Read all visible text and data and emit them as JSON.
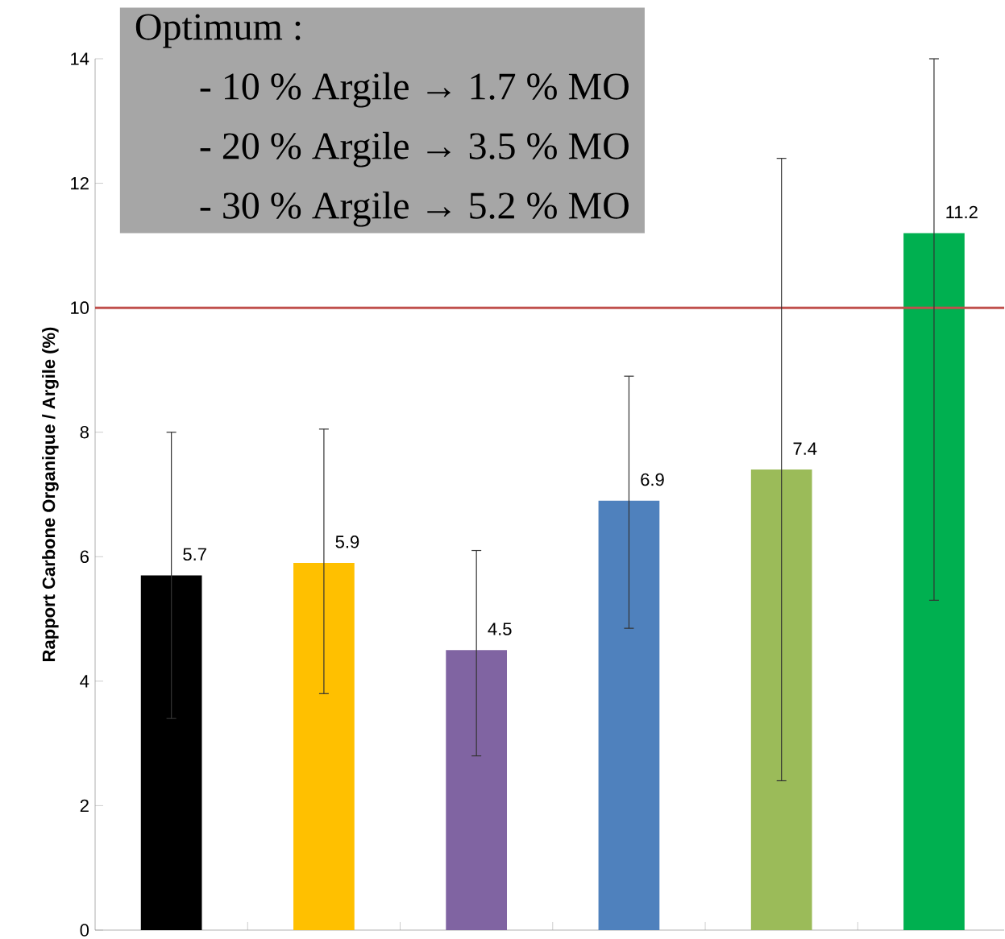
{
  "chart_data": {
    "type": "bar",
    "ylabel": "**Rapport Carbone Organique / Argile (%)**",
    "categories": [
      null,
      null,
      null,
      null,
      null,
      null
    ],
    "values": [
      5.7,
      5.9,
      4.5,
      6.9,
      7.4,
      11.2
    ],
    "colors": [
      "#000000",
      "#ffc000",
      "#8064a2",
      "#4f81bd",
      "#9bbb59",
      "#00b050"
    ],
    "errors": [
      [
        3.4,
        8.0
      ],
      [
        3.8,
        8.05
      ],
      [
        2.8,
        6.1
      ],
      [
        4.85,
        8.9
      ],
      [
        2.4,
        12.4
      ],
      [
        5.3,
        14
      ]
    ],
    "data_labels": true,
    "ylim": [
      0,
      14
    ],
    "yticks": [
      0,
      2,
      4,
      6,
      8,
      10,
      12,
      14
    ],
    "ref_lines": [
      {
        "axis": "y",
        "value": 10,
        "color": "#c0504d"
      }
    ],
    "annotations": [
      "Optimum :",
      "- 10 % Argile → 1.7 % MO",
      "- 20 % Argile → 3.5 % MO",
      "- 30 % Argile → 5.2 % MO"
    ],
    "tick_labels": "y",
    "grid": false
  }
}
